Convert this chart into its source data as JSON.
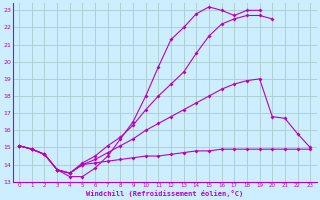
{
  "background_color": "#cceeff",
  "grid_color": "#aacccc",
  "line_color": "#bb00bb",
  "xlabel": "Windchill (Refroidissement éolien,°C)",
  "xlim": [
    -0.5,
    23.5
  ],
  "ylim": [
    13,
    23.4
  ],
  "yticks": [
    13,
    14,
    15,
    16,
    17,
    18,
    19,
    20,
    21,
    22,
    23
  ],
  "xticks": [
    0,
    1,
    2,
    3,
    4,
    5,
    6,
    7,
    8,
    9,
    10,
    11,
    12,
    13,
    14,
    15,
    16,
    17,
    18,
    19,
    20,
    21,
    22,
    23
  ],
  "series": [
    {
      "x": [
        0,
        1,
        2,
        3,
        4,
        5,
        6,
        7,
        8,
        9,
        10,
        11,
        12,
        13,
        14,
        15,
        16,
        17,
        18,
        19,
        20,
        21,
        22,
        23
      ],
      "y": [
        15.1,
        14.9,
        14.6,
        13.7,
        13.5,
        14.0,
        14.1,
        14.2,
        14.3,
        14.4,
        14.5,
        14.5,
        14.6,
        14.7,
        14.8,
        14.8,
        14.9,
        14.9,
        14.9,
        14.9,
        14.9,
        14.9,
        14.9,
        14.9
      ]
    },
    {
      "x": [
        0,
        1,
        2,
        3,
        4,
        5,
        6,
        7,
        8,
        9,
        10,
        11,
        12,
        13,
        14,
        15,
        16,
        17,
        18,
        19,
        20,
        21,
        22,
        23
      ],
      "y": [
        15.1,
        14.9,
        14.6,
        13.7,
        13.5,
        14.0,
        14.3,
        14.7,
        15.1,
        15.5,
        16.0,
        16.4,
        16.8,
        17.2,
        17.6,
        18.0,
        18.4,
        18.7,
        18.9,
        19.0,
        16.8,
        16.7,
        15.8,
        15.0
      ]
    },
    {
      "x": [
        0,
        1,
        2,
        3,
        4,
        5,
        6,
        7,
        8,
        9,
        10,
        11,
        12,
        13,
        14,
        15,
        16,
        17,
        18,
        19,
        20,
        21,
        22,
        23
      ],
      "y": [
        15.1,
        14.9,
        14.6,
        13.7,
        13.5,
        14.1,
        14.5,
        15.1,
        15.6,
        16.3,
        17.2,
        18.0,
        18.7,
        19.4,
        20.5,
        21.5,
        22.2,
        22.5,
        22.7,
        22.7,
        22.5,
        null,
        null,
        null
      ]
    },
    {
      "x": [
        0,
        1,
        2,
        3,
        4,
        5,
        6,
        7,
        8,
        9,
        10,
        11,
        12,
        13,
        14,
        15,
        16,
        17,
        18,
        19,
        20
      ],
      "y": [
        15.1,
        14.9,
        14.6,
        13.7,
        13.3,
        13.3,
        13.8,
        14.5,
        15.5,
        16.5,
        18.0,
        19.7,
        21.3,
        22.0,
        22.8,
        23.2,
        23.0,
        22.7,
        23.0,
        23.0,
        null
      ]
    }
  ]
}
